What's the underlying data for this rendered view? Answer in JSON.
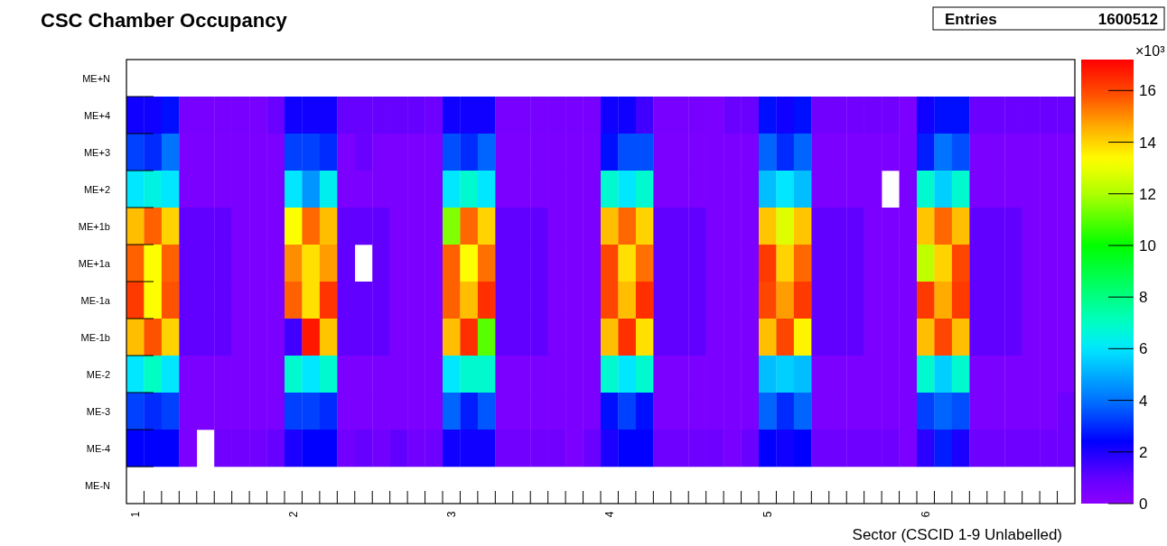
{
  "chart_data": {
    "type": "heatmap",
    "title": "CSC Chamber Occupancy",
    "xlabel": "Sector (CSCID 1-9 Unlabelled)",
    "clabel": "×10³",
    "annotations": [
      "Entries",
      "1600512"
    ],
    "categories": [
      "1",
      null,
      null,
      null,
      null,
      null,
      null,
      null,
      null,
      "2",
      null,
      null,
      null,
      null,
      null,
      null,
      null,
      null,
      "3",
      null,
      null,
      null,
      null,
      null,
      null,
      null,
      null,
      "4",
      null,
      null,
      null,
      null,
      null,
      null,
      null,
      null,
      "5",
      null,
      null,
      null,
      null,
      null,
      null,
      null,
      null,
      "6",
      null,
      null,
      null,
      null,
      null,
      null,
      null,
      null
    ],
    "y_categories": [
      "ME+N",
      "ME+4",
      "ME+3",
      "ME+2",
      "ME+1b",
      "ME+1a",
      "ME-1a",
      "ME-1b",
      "ME-2",
      "ME-3",
      "ME-4",
      "ME-N"
    ],
    "clim": [
      0,
      17.2
    ],
    "cticks": [
      0,
      2,
      4,
      6,
      8,
      10,
      12,
      14,
      16
    ],
    "cells": [
      [
        null,
        null,
        null,
        null,
        null,
        null,
        null,
        null,
        null,
        null,
        null,
        null,
        null,
        null,
        null,
        null,
        null,
        null,
        null,
        null,
        null,
        null,
        null,
        null,
        null,
        null,
        null,
        null,
        null,
        null,
        null,
        null,
        null,
        null,
        null,
        null,
        null,
        null,
        null,
        null,
        null,
        null,
        null,
        null,
        null,
        null,
        null,
        null,
        null,
        null,
        null,
        null,
        null,
        null
      ],
      [
        2.2,
        2.2,
        2.6,
        0.5,
        0.5,
        0.5,
        0.5,
        0.5,
        0.8,
        2.2,
        2.2,
        2.2,
        0.9,
        0.9,
        0.9,
        0.9,
        0.9,
        0.7,
        2.2,
        2.2,
        2.2,
        0.5,
        0.5,
        0.5,
        0.5,
        0.5,
        0.5,
        2.2,
        2.2,
        1.5,
        0.5,
        0.5,
        0.5,
        0.4,
        0.8,
        0.8,
        2.6,
        2.2,
        2.6,
        0.6,
        0.6,
        0.6,
        0.6,
        0.6,
        0.4,
        2.2,
        2.6,
        2.6,
        0.8,
        0.8,
        0.8,
        0.8,
        0.8,
        0.8
      ],
      [
        3.3,
        3.0,
        4.0,
        0.4,
        0.4,
        0.4,
        0.4,
        0.4,
        0.4,
        3.3,
        3.3,
        3.0,
        0.4,
        0.8,
        0.4,
        0.4,
        0.4,
        0.4,
        3.5,
        3.0,
        3.8,
        0.4,
        0.4,
        0.4,
        0.4,
        0.4,
        0.4,
        2.6,
        3.5,
        3.5,
        0.4,
        0.4,
        0.4,
        0.4,
        0.4,
        0.4,
        3.8,
        3.0,
        3.8,
        0.4,
        0.4,
        0.4,
        0.4,
        0.4,
        0.4,
        2.8,
        4.0,
        3.5,
        0.4,
        0.4,
        0.4,
        0.4,
        0.4,
        0.4
      ],
      [
        6.0,
        6.5,
        6.0,
        0.4,
        0.4,
        0.4,
        0.4,
        0.4,
        0.4,
        6.0,
        4.6,
        6.3,
        0.4,
        0.4,
        0.4,
        0.4,
        0.4,
        0.4,
        6.0,
        6.8,
        6.0,
        0.4,
        0.4,
        0.4,
        0.4,
        0.4,
        0.4,
        6.8,
        6.0,
        6.8,
        0.4,
        0.4,
        0.4,
        0.4,
        0.4,
        0.4,
        5.3,
        6.0,
        5.3,
        0.4,
        0.4,
        0.4,
        0.4,
        null,
        0.4,
        6.8,
        5.6,
        6.8,
        0.4,
        0.4,
        0.4,
        0.4,
        0.4,
        0.4
      ],
      [
        14.3,
        15.6,
        14.0,
        1.0,
        1.0,
        1.0,
        0.4,
        0.4,
        0.4,
        13.3,
        15.5,
        14.3,
        1.0,
        1.0,
        1.0,
        0.4,
        0.4,
        0.4,
        11.5,
        15.5,
        14.0,
        1.0,
        1.0,
        1.0,
        0.4,
        0.4,
        0.4,
        14.3,
        15.5,
        14.0,
        1.0,
        1.0,
        1.0,
        0.4,
        0.4,
        0.4,
        14.2,
        12.8,
        14.2,
        1.0,
        1.0,
        1.0,
        0.4,
        0.4,
        0.4,
        14.2,
        15.5,
        14.3,
        1.0,
        1.0,
        1.0,
        0.4,
        0.4,
        0.4
      ],
      [
        15.6,
        13.3,
        15.6,
        1.0,
        1.0,
        1.0,
        0.4,
        0.4,
        0.4,
        15.0,
        13.8,
        14.8,
        1.0,
        null,
        1.0,
        0.4,
        0.4,
        0.4,
        15.6,
        13.3,
        15.4,
        1.0,
        1.0,
        1.0,
        0.4,
        0.4,
        0.4,
        16.0,
        13.8,
        15.4,
        1.0,
        1.0,
        1.0,
        0.4,
        0.4,
        0.4,
        16.2,
        14.0,
        15.5,
        1.0,
        1.0,
        1.0,
        0.4,
        0.4,
        0.4,
        12.3,
        14.0,
        16.0,
        1.0,
        1.0,
        1.0,
        0.4,
        0.4,
        0.4
      ],
      [
        16.2,
        13.3,
        15.8,
        1.0,
        1.0,
        1.0,
        0.4,
        0.4,
        0.4,
        15.6,
        13.8,
        16.3,
        1.0,
        1.0,
        1.0,
        0.4,
        0.4,
        0.4,
        15.6,
        14.3,
        16.4,
        1.0,
        1.0,
        1.0,
        0.4,
        0.4,
        0.4,
        16.0,
        14.3,
        16.4,
        1.0,
        1.0,
        1.0,
        0.4,
        0.4,
        0.4,
        16.0,
        14.8,
        16.2,
        1.0,
        1.0,
        1.0,
        0.4,
        0.4,
        0.4,
        16.2,
        14.6,
        16.2,
        1.0,
        1.0,
        1.0,
        0.4,
        0.4,
        0.4
      ],
      [
        14.3,
        15.8,
        14.0,
        1.0,
        1.0,
        1.0,
        0.4,
        0.4,
        0.4,
        1.5,
        16.8,
        14.2,
        1.0,
        1.0,
        1.0,
        0.4,
        0.4,
        0.4,
        14.3,
        16.4,
        11.0,
        1.0,
        1.0,
        1.0,
        0.4,
        0.4,
        0.4,
        14.3,
        16.4,
        13.8,
        1.0,
        1.0,
        1.0,
        0.4,
        0.4,
        0.4,
        14.3,
        16.0,
        13.5,
        1.0,
        1.0,
        1.0,
        0.4,
        0.4,
        0.4,
        14.3,
        16.0,
        14.3,
        1.0,
        1.0,
        1.0,
        0.4,
        0.4,
        0.4
      ],
      [
        6.0,
        7.0,
        6.0,
        0.4,
        0.4,
        0.4,
        0.4,
        0.4,
        0.4,
        6.8,
        6.0,
        6.8,
        0.4,
        0.4,
        0.4,
        0.4,
        0.4,
        0.4,
        6.0,
        6.8,
        6.8,
        0.4,
        0.4,
        0.4,
        0.4,
        0.4,
        0.4,
        6.8,
        6.0,
        6.8,
        0.4,
        0.4,
        0.4,
        0.4,
        0.4,
        0.4,
        5.3,
        5.6,
        5.3,
        0.4,
        0.4,
        0.4,
        0.4,
        0.4,
        0.4,
        6.8,
        5.6,
        6.8,
        0.4,
        0.4,
        0.4,
        0.4,
        0.4,
        0.4
      ],
      [
        3.3,
        3.0,
        3.3,
        0.4,
        0.4,
        0.4,
        0.4,
        0.4,
        0.4,
        3.3,
        3.3,
        3.0,
        0.4,
        0.4,
        0.4,
        0.4,
        0.4,
        0.4,
        3.8,
        2.8,
        3.6,
        0.4,
        0.4,
        0.4,
        0.4,
        0.4,
        0.4,
        2.6,
        3.3,
        2.6,
        0.4,
        0.4,
        0.4,
        0.4,
        0.4,
        0.4,
        3.8,
        3.0,
        3.8,
        0.4,
        0.4,
        0.4,
        0.4,
        0.4,
        0.4,
        3.3,
        3.8,
        3.5,
        0.4,
        0.4,
        0.4,
        0.4,
        0.4,
        0.7
      ],
      [
        2.4,
        2.4,
        2.4,
        0.4,
        null,
        0.6,
        0.6,
        0.6,
        0.9,
        2.0,
        2.4,
        2.4,
        0.6,
        0.9,
        0.6,
        1.0,
        0.6,
        0.7,
        2.2,
        2.2,
        2.2,
        0.6,
        0.6,
        0.6,
        0.6,
        0.4,
        0.8,
        2.0,
        2.4,
        2.4,
        0.7,
        0.7,
        0.7,
        0.7,
        0.5,
        0.8,
        2.4,
        2.2,
        2.4,
        0.7,
        0.7,
        0.7,
        0.7,
        0.7,
        0.4,
        1.8,
        2.8,
        2.0,
        0.7,
        0.7,
        0.7,
        0.7,
        0.7,
        0.7
      ],
      [
        null,
        null,
        null,
        null,
        null,
        null,
        null,
        null,
        null,
        null,
        null,
        null,
        null,
        null,
        null,
        null,
        null,
        null,
        null,
        null,
        null,
        null,
        null,
        null,
        null,
        null,
        null,
        null,
        null,
        null,
        null,
        null,
        null,
        null,
        null,
        null,
        null,
        null,
        null,
        null,
        null,
        null,
        null,
        null,
        null,
        null,
        null,
        null,
        null,
        null,
        null,
        null,
        null,
        null
      ]
    ]
  }
}
